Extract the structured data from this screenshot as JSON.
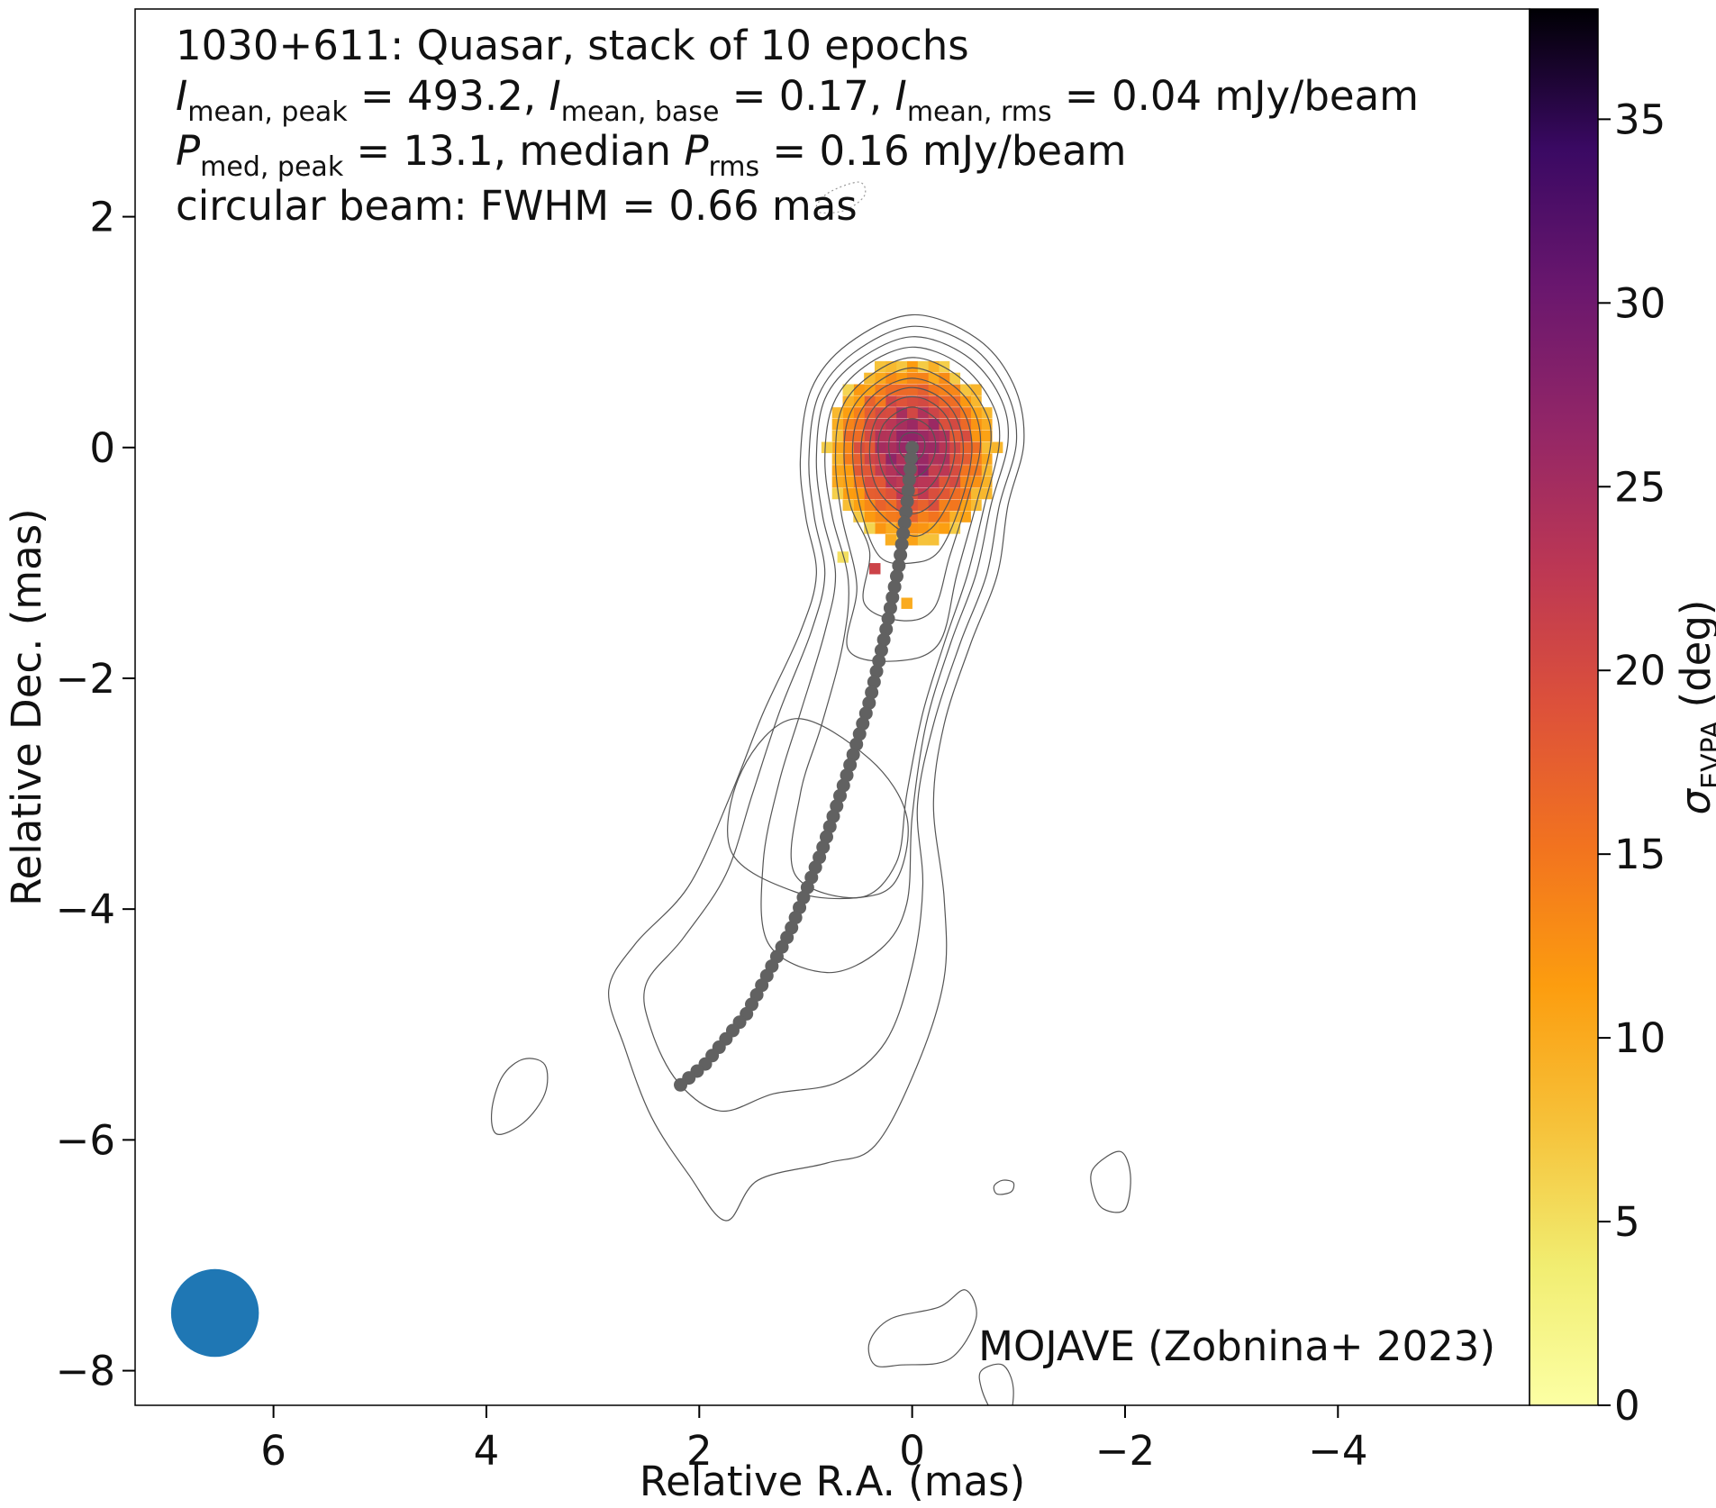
{
  "chart_data": {
    "type": "heatmap",
    "title": "1030+611: Quasar, stack of 10 epochs",
    "info_lines": [
      {
        "text": "I_mean,peak = 493.2, I_mean,base = 0.17, I_mean,rms = 0.04 mJy/beam",
        "p1": "I",
        "s1": "mean, peak",
        "t1": " = 493.2, ",
        "p2": "I",
        "s2": "mean, base",
        "t2": " = 0.17, ",
        "p3": "I",
        "s3": "mean, rms",
        "t3": " = 0.04 mJy/beam"
      },
      {
        "text": "P_med,peak = 13.1, median P_rms = 0.16 mJy/beam",
        "p1": "P",
        "s1": "med, peak",
        "t1": " = 13.1, median ",
        "p2": "P",
        "s2": "rms",
        "t2": " = 0.16 mJy/beam"
      }
    ],
    "beam_text": "circular beam: FWHM = 0.66 mas",
    "credit": "MOJAVE (Zobnina+ 2023)",
    "xlabel": "Relative R.A. (mas)",
    "ylabel": "Relative Dec. (mas)",
    "xlim": [
      7.3,
      -5.8
    ],
    "ylim": [
      -8.3,
      3.8
    ],
    "xticks": [
      6,
      4,
      2,
      0,
      -2,
      -4
    ],
    "yticks": [
      2,
      0,
      -2,
      -4,
      -6,
      -8
    ],
    "colorbar": {
      "label_symbol": "σ",
      "label_sub": "EVPA",
      "label_unit": " (deg)",
      "colormap": "inferno_r",
      "range": [
        0,
        38
      ],
      "ticks": [
        0,
        5,
        10,
        15,
        20,
        25,
        30,
        35
      ]
    },
    "beam": {
      "x": 6.55,
      "y": -7.5,
      "fwhm": 0.66,
      "color": "#1f77b4"
    },
    "ridge_line": {
      "color": "#616161",
      "points": [
        [
          0.0,
          0.0
        ],
        [
          0.05,
          -0.5
        ],
        [
          0.12,
          -1.0
        ],
        [
          0.25,
          -1.6
        ],
        [
          0.4,
          -2.2
        ],
        [
          0.6,
          -2.8
        ],
        [
          0.85,
          -3.5
        ],
        [
          1.15,
          -4.2
        ],
        [
          1.55,
          -4.9
        ],
        [
          1.95,
          -5.35
        ],
        [
          2.25,
          -5.58
        ]
      ]
    },
    "contours": [
      {
        "style": "solid",
        "points": [
          [
            2.45,
            -5.8
          ],
          [
            2.7,
            -5.2
          ],
          [
            2.85,
            -4.7
          ],
          [
            2.6,
            -4.3
          ],
          [
            2.1,
            -3.8
          ],
          [
            1.7,
            -3.0
          ],
          [
            1.4,
            -2.3
          ],
          [
            1.05,
            -1.6
          ],
          [
            0.9,
            -1.1
          ],
          [
            1.0,
            -0.6
          ],
          [
            1.05,
            -0.1
          ],
          [
            0.95,
            0.5
          ],
          [
            0.6,
            0.9
          ],
          [
            0.0,
            1.15
          ],
          [
            -0.6,
            0.95
          ],
          [
            -0.95,
            0.55
          ],
          [
            -1.05,
            0.05
          ],
          [
            -0.9,
            -0.5
          ],
          [
            -0.8,
            -1.1
          ],
          [
            -0.55,
            -1.7
          ],
          [
            -0.3,
            -2.4
          ],
          [
            -0.2,
            -3.1
          ],
          [
            -0.3,
            -3.9
          ],
          [
            -0.3,
            -4.6
          ],
          [
            -0.05,
            -5.35
          ],
          [
            0.35,
            -6.05
          ],
          [
            0.8,
            -6.2
          ],
          [
            1.45,
            -6.35
          ],
          [
            1.75,
            -6.7
          ],
          [
            2.1,
            -6.3
          ],
          [
            2.45,
            -5.8
          ]
        ]
      },
      {
        "style": "solid",
        "points": [
          [
            2.2,
            -5.5
          ],
          [
            2.45,
            -5.05
          ],
          [
            2.5,
            -4.65
          ],
          [
            2.15,
            -4.25
          ],
          [
            1.75,
            -3.7
          ],
          [
            1.5,
            -3.0
          ],
          [
            1.25,
            -2.3
          ],
          [
            0.95,
            -1.6
          ],
          [
            0.82,
            -1.1
          ],
          [
            0.92,
            -0.6
          ],
          [
            0.97,
            -0.1
          ],
          [
            0.88,
            0.45
          ],
          [
            0.55,
            0.82
          ],
          [
            0.0,
            1.05
          ],
          [
            -0.55,
            0.88
          ],
          [
            -0.88,
            0.5
          ],
          [
            -0.98,
            0.05
          ],
          [
            -0.82,
            -0.5
          ],
          [
            -0.7,
            -1.1
          ],
          [
            -0.45,
            -1.7
          ],
          [
            -0.2,
            -2.4
          ],
          [
            -0.05,
            -3.1
          ],
          [
            -0.1,
            -3.8
          ],
          [
            0.0,
            -4.5
          ],
          [
            0.25,
            -5.15
          ],
          [
            0.7,
            -5.5
          ],
          [
            1.3,
            -5.6
          ],
          [
            1.8,
            -5.75
          ],
          [
            2.2,
            -5.5
          ]
        ]
      },
      {
        "style": "solid",
        "points": [
          [
            1.35,
            -4.3
          ],
          [
            1.4,
            -3.6
          ],
          [
            1.25,
            -2.9
          ],
          [
            1.05,
            -2.3
          ],
          [
            0.82,
            -1.6
          ],
          [
            0.72,
            -1.1
          ],
          [
            0.84,
            -0.6
          ],
          [
            0.9,
            -0.1
          ],
          [
            0.82,
            0.42
          ],
          [
            0.5,
            0.76
          ],
          [
            0.0,
            0.96
          ],
          [
            -0.5,
            0.8
          ],
          [
            -0.82,
            0.45
          ],
          [
            -0.9,
            0.05
          ],
          [
            -0.74,
            -0.5
          ],
          [
            -0.6,
            -1.1
          ],
          [
            -0.36,
            -1.7
          ],
          [
            -0.13,
            -2.4
          ],
          [
            0.0,
            -3.2
          ],
          [
            0.05,
            -3.95
          ],
          [
            0.3,
            -4.35
          ],
          [
            0.8,
            -4.55
          ],
          [
            1.35,
            -4.3
          ]
        ]
      },
      {
        "style": "solid",
        "points": [
          [
            1.1,
            -3.7
          ],
          [
            1.05,
            -3.0
          ],
          [
            0.85,
            -2.4
          ],
          [
            0.65,
            -1.7
          ],
          [
            0.6,
            -1.15
          ],
          [
            0.75,
            -0.6
          ],
          [
            0.82,
            -0.1
          ],
          [
            0.74,
            0.38
          ],
          [
            0.45,
            0.7
          ],
          [
            0.0,
            0.87
          ],
          [
            -0.45,
            0.72
          ],
          [
            -0.74,
            0.4
          ],
          [
            -0.82,
            0.05
          ],
          [
            -0.68,
            -0.5
          ],
          [
            -0.52,
            -1.1
          ],
          [
            -0.3,
            -1.7
          ],
          [
            -0.1,
            -2.3
          ],
          [
            0.05,
            -3.0
          ],
          [
            0.15,
            -3.6
          ],
          [
            0.5,
            -3.9
          ],
          [
            1.1,
            -3.7
          ]
        ]
      },
      {
        "style": "solid",
        "points": [
          [
            1.7,
            -3.5
          ],
          [
            1.6,
            -2.8
          ],
          [
            1.1,
            -2.35
          ],
          [
            0.4,
            -2.7
          ],
          [
            0.05,
            -3.2
          ],
          [
            0.15,
            -3.75
          ],
          [
            0.5,
            -3.9
          ],
          [
            1.1,
            -3.85
          ],
          [
            1.7,
            -3.5
          ]
        ]
      },
      {
        "style": "solid",
        "points": [
          [
            0.6,
            -1.75
          ],
          [
            0.52,
            -1.2
          ],
          [
            0.66,
            -0.6
          ],
          [
            0.72,
            -0.1
          ],
          [
            0.66,
            0.34
          ],
          [
            0.4,
            0.62
          ],
          [
            0.0,
            0.78
          ],
          [
            -0.4,
            0.64
          ],
          [
            -0.66,
            0.36
          ],
          [
            -0.74,
            0.05
          ],
          [
            -0.6,
            -0.5
          ],
          [
            -0.42,
            -1.1
          ],
          [
            -0.25,
            -1.7
          ],
          [
            0.15,
            -1.85
          ],
          [
            0.6,
            -1.75
          ]
        ]
      },
      {
        "style": "solid",
        "points": [
          [
            0.45,
            -1.35
          ],
          [
            0.4,
            -0.9
          ],
          [
            0.58,
            -0.5
          ],
          [
            0.64,
            -0.05
          ],
          [
            0.58,
            0.3
          ],
          [
            0.35,
            0.55
          ],
          [
            0.0,
            0.69
          ],
          [
            -0.35,
            0.56
          ],
          [
            -0.58,
            0.32
          ],
          [
            -0.64,
            0.0
          ],
          [
            -0.52,
            -0.45
          ],
          [
            -0.35,
            -0.95
          ],
          [
            -0.2,
            -1.4
          ],
          [
            0.1,
            -1.5
          ],
          [
            0.45,
            -1.35
          ]
        ]
      },
      {
        "style": "solid",
        "points": [
          [
            0.3,
            -0.95
          ],
          [
            0.48,
            -0.55
          ],
          [
            0.56,
            -0.05
          ],
          [
            0.5,
            0.28
          ],
          [
            0.3,
            0.5
          ],
          [
            0.0,
            0.6
          ],
          [
            -0.3,
            0.5
          ],
          [
            -0.5,
            0.28
          ],
          [
            -0.56,
            -0.05
          ],
          [
            -0.45,
            -0.5
          ],
          [
            -0.25,
            -0.9
          ],
          [
            0.0,
            -1.0
          ],
          [
            0.3,
            -0.95
          ]
        ]
      },
      {
        "style": "solid",
        "points": [
          [
            0.4,
            -0.45
          ],
          [
            0.48,
            -0.05
          ],
          [
            0.42,
            0.25
          ],
          [
            0.25,
            0.44
          ],
          [
            0.0,
            0.52
          ],
          [
            -0.25,
            0.44
          ],
          [
            -0.42,
            0.25
          ],
          [
            -0.48,
            -0.05
          ],
          [
            -0.38,
            -0.4
          ],
          [
            -0.18,
            -0.7
          ],
          [
            0.05,
            -0.75
          ],
          [
            0.4,
            -0.45
          ]
        ]
      },
      {
        "style": "solid",
        "points": [
          [
            0.33,
            -0.35
          ],
          [
            0.4,
            -0.05
          ],
          [
            0.35,
            0.22
          ],
          [
            0.2,
            0.38
          ],
          [
            0.0,
            0.44
          ],
          [
            -0.2,
            0.38
          ],
          [
            -0.35,
            0.22
          ],
          [
            -0.4,
            -0.05
          ],
          [
            -0.3,
            -0.35
          ],
          [
            -0.1,
            -0.55
          ],
          [
            0.12,
            -0.55
          ],
          [
            0.33,
            -0.35
          ]
        ]
      },
      {
        "style": "solid",
        "points": [
          [
            0.26,
            -0.25
          ],
          [
            0.32,
            -0.02
          ],
          [
            0.28,
            0.18
          ],
          [
            0.15,
            0.3
          ],
          [
            0.0,
            0.35
          ],
          [
            -0.15,
            0.3
          ],
          [
            -0.28,
            0.18
          ],
          [
            -0.32,
            -0.02
          ],
          [
            -0.24,
            -0.25
          ],
          [
            -0.08,
            -0.4
          ],
          [
            0.1,
            -0.4
          ],
          [
            0.26,
            -0.25
          ]
        ]
      },
      {
        "style": "solid",
        "points": [
          [
            0.18,
            -0.15
          ],
          [
            0.22,
            0.0
          ],
          [
            0.19,
            0.14
          ],
          [
            0.1,
            0.22
          ],
          [
            0.0,
            0.25
          ],
          [
            -0.1,
            0.22
          ],
          [
            -0.19,
            0.14
          ],
          [
            -0.22,
            0.0
          ],
          [
            -0.17,
            -0.15
          ],
          [
            -0.05,
            -0.25
          ],
          [
            0.08,
            -0.25
          ],
          [
            0.18,
            -0.15
          ]
        ]
      },
      {
        "style": "solid",
        "points": [
          [
            0.1,
            -0.06
          ],
          [
            0.12,
            0.02
          ],
          [
            0.09,
            0.1
          ],
          [
            0.0,
            0.13
          ],
          [
            -0.09,
            0.1
          ],
          [
            -0.12,
            0.02
          ],
          [
            -0.09,
            -0.07
          ],
          [
            0.0,
            -0.12
          ],
          [
            0.1,
            -0.06
          ]
        ]
      },
      {
        "style": "solid",
        "points": [
          [
            3.95,
            -5.75
          ],
          [
            3.85,
            -5.45
          ],
          [
            3.65,
            -5.3
          ],
          [
            3.45,
            -5.35
          ],
          [
            3.45,
            -5.6
          ],
          [
            3.65,
            -5.85
          ],
          [
            3.9,
            -5.95
          ],
          [
            3.95,
            -5.75
          ]
        ]
      },
      {
        "style": "solid",
        "points": [
          [
            -0.77,
            -6.4
          ],
          [
            -0.85,
            -6.35
          ],
          [
            -0.95,
            -6.37
          ],
          [
            -0.93,
            -6.45
          ],
          [
            -0.8,
            -6.47
          ],
          [
            -0.77,
            -6.4
          ]
        ]
      },
      {
        "style": "solid",
        "points": [
          [
            -1.7,
            -6.25
          ],
          [
            -1.95,
            -6.1
          ],
          [
            -2.05,
            -6.3
          ],
          [
            -2.0,
            -6.6
          ],
          [
            -1.8,
            -6.6
          ],
          [
            -1.7,
            -6.45
          ],
          [
            -1.7,
            -6.25
          ]
        ]
      },
      {
        "style": "solid",
        "points": [
          [
            0.4,
            -7.75
          ],
          [
            0.2,
            -7.55
          ],
          [
            -0.25,
            -7.45
          ],
          [
            -0.5,
            -7.3
          ],
          [
            -0.6,
            -7.55
          ],
          [
            -0.35,
            -7.9
          ],
          [
            0.1,
            -7.95
          ],
          [
            0.35,
            -7.95
          ],
          [
            0.4,
            -7.75
          ]
        ]
      },
      {
        "style": "solid",
        "points": [
          [
            -0.65,
            -8.0
          ],
          [
            -0.85,
            -7.95
          ],
          [
            -0.95,
            -8.15
          ],
          [
            -0.9,
            -8.45
          ],
          [
            -0.75,
            -8.35
          ],
          [
            -0.65,
            -8.15
          ],
          [
            -0.65,
            -8.0
          ]
        ]
      },
      {
        "style": "dotted",
        "points": [
          [
            0.9,
            2.05
          ],
          [
            0.8,
            2.2
          ],
          [
            0.5,
            2.3
          ],
          [
            0.45,
            2.18
          ],
          [
            0.65,
            2.05
          ],
          [
            0.9,
            2.05
          ]
        ]
      }
    ],
    "evpa_pixels": {
      "center": [
        0.0,
        0.0
      ],
      "radius": 0.8,
      "cell": 0.1,
      "value_formula_note": "sigma decreases from ~27 deg at center to ~8 deg at edge",
      "extra": [
        {
          "x": 0.65,
          "y": -0.95,
          "value": 5
        },
        {
          "x": 0.35,
          "y": -1.05,
          "value": 21
        },
        {
          "x": 0.05,
          "y": -1.35,
          "value": 10
        }
      ]
    }
  }
}
